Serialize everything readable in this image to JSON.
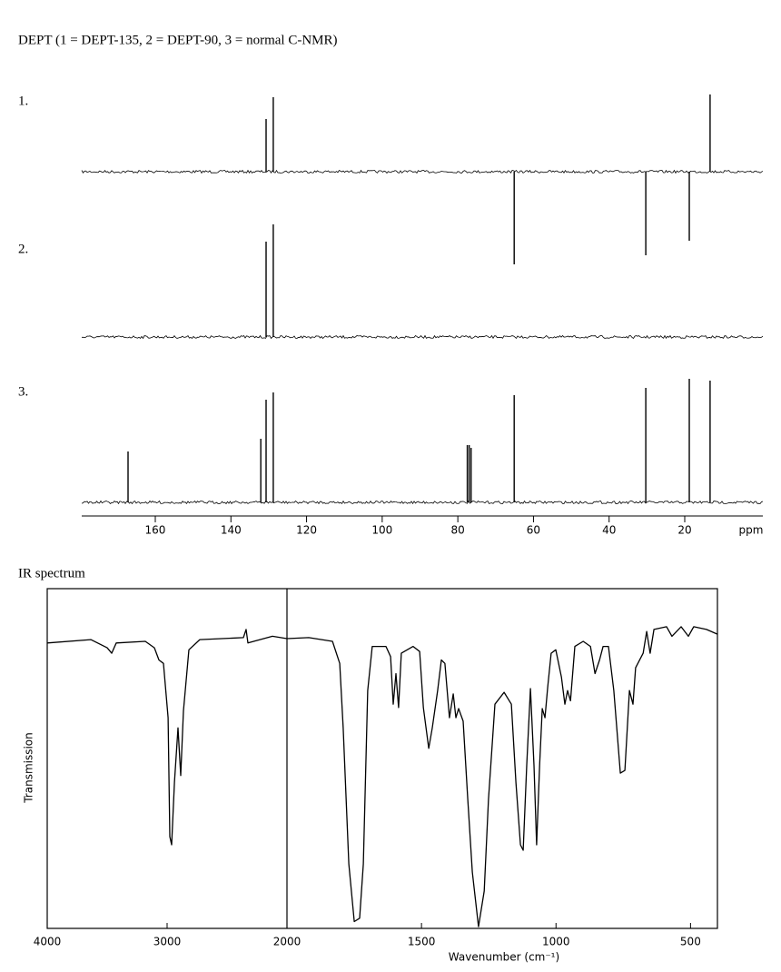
{
  "chart_data": [
    {
      "type": "nmr",
      "title": "DEPT (1 = DEPT-135, 2 = DEPT-90, 3 = normal C-NMR)",
      "xlabel": "ppm",
      "xlim": [
        180,
        0
      ],
      "xticks": [
        160,
        140,
        120,
        100,
        80,
        60,
        40,
        20
      ],
      "series": [
        {
          "name": "1.",
          "color": "#000000",
          "x": [
            130.7,
            128.8,
            65.1,
            30.3,
            18.8,
            13.3
          ],
          "values": [
            58,
            82,
            -102,
            -92,
            -76,
            85
          ]
        },
        {
          "name": "2.",
          "color": "#000000",
          "x": [
            130.7,
            128.8
          ],
          "values": [
            105,
            124
          ]
        },
        {
          "name": "3.",
          "color": "#000000",
          "x": [
            167.2,
            132.1,
            130.7,
            128.8,
            77.5,
            77.0,
            76.5,
            65.1,
            30.3,
            18.8,
            13.3
          ],
          "values": [
            56,
            70,
            113,
            121,
            63,
            63,
            60,
            118,
            126,
            136,
            134
          ]
        }
      ]
    },
    {
      "type": "line",
      "title": "IR spectrum",
      "xlabel": "Wavenumber  (cm⁻¹)",
      "ylabel": "Transmission",
      "color": "#000000",
      "xlim": [
        4000,
        400
      ],
      "x_scale_break": 2000,
      "ylim": [
        0,
        100
      ],
      "xticks": [
        4000,
        3000,
        2000,
        1500,
        1000,
        500
      ],
      "x": [
        4000,
        3636,
        3500,
        3462,
        3424,
        3182,
        3106,
        3068,
        3030,
        2992,
        2977,
        2962,
        2939,
        2909,
        2886,
        2864,
        2818,
        2727,
        2364,
        2341,
        2326,
        2121,
        2000,
        1919,
        1831,
        1804,
        1791,
        1770,
        1750,
        1730,
        1716,
        1700,
        1683,
        1632,
        1615,
        1605,
        1595,
        1585,
        1575,
        1531,
        1507,
        1493,
        1473,
        1460,
        1440,
        1426,
        1413,
        1396,
        1382,
        1372,
        1362,
        1345,
        1328,
        1311,
        1288,
        1267,
        1251,
        1227,
        1193,
        1166,
        1149,
        1132,
        1122,
        1109,
        1095,
        1082,
        1072,
        1061,
        1051,
        1041,
        1031,
        1018,
        1001,
        980,
        967,
        957,
        946,
        930,
        899,
        872,
        855,
        838,
        825,
        805,
        785,
        761,
        744,
        727,
        714,
        704,
        676,
        663,
        650,
        636,
        589,
        569,
        535,
        508,
        488,
        441,
        400
      ],
      "values": [
        84,
        85,
        82.6,
        81,
        84,
        84.5,
        82.6,
        79,
        78,
        62,
        27,
        24.6,
        43,
        59,
        45,
        64,
        82,
        85,
        85.6,
        88,
        84,
        86,
        85.3,
        85.6,
        84.5,
        78,
        59,
        19,
        2,
        3,
        19,
        70,
        83,
        83,
        80,
        66,
        75,
        65,
        81,
        83,
        81.5,
        65,
        53,
        59,
        70,
        79,
        78,
        62,
        69,
        62,
        64.7,
        61,
        38,
        16.6,
        0.5,
        11,
        38,
        66,
        69.5,
        66,
        43,
        24.6,
        23,
        48,
        70.6,
        48,
        24.6,
        48,
        64.7,
        62,
        71,
        81,
        82,
        74,
        66,
        70,
        67,
        83,
        84.5,
        83,
        75,
        79,
        83,
        83,
        70,
        45.7,
        46.5,
        70,
        66,
        76.7,
        81,
        87.4,
        81,
        88,
        88.8,
        86,
        88.8,
        86,
        88.8,
        88,
        86.6
      ]
    }
  ]
}
